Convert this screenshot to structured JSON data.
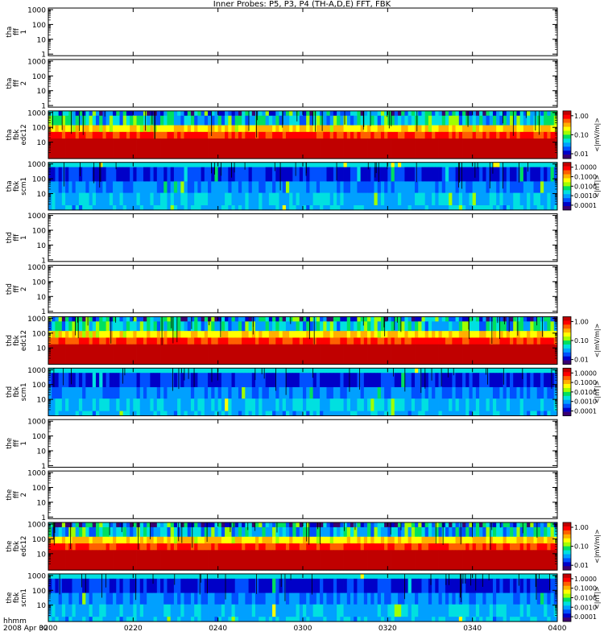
{
  "title": "Inner Probes: P5, P3, P4 (TH-A,D,E) FFT, FBK",
  "footer": {
    "time_format": "hhmm",
    "date": "2008 Apr 30"
  },
  "chart_data": {
    "type": "heatmap",
    "x_ticks": [
      "0200",
      "0220",
      "0240",
      "0300",
      "0320",
      "0340",
      "0400"
    ],
    "xlim_minutes": [
      0,
      120
    ],
    "panels": [
      {
        "ylabel": [
          "tha",
          "fff",
          "1"
        ],
        "kind": "empty",
        "y_ticks": [
          "1000",
          "100",
          "10",
          "1"
        ],
        "ylim": [
          1,
          1000
        ],
        "yscale": "log"
      },
      {
        "ylabel": [
          "tha",
          "fff",
          "2"
        ],
        "kind": "empty",
        "y_ticks": [
          "1000",
          "100",
          "10",
          "1"
        ],
        "ylim": [
          1,
          1000
        ],
        "yscale": "log"
      },
      {
        "ylabel": [
          "tha",
          "fbk",
          "edc12"
        ],
        "kind": "efield",
        "y_ticks": [
          "1000",
          "100",
          "10"
        ],
        "zlabel": "<|mV/m|>",
        "z_ticks": [
          "1.00",
          "0.10",
          "0.01"
        ]
      },
      {
        "ylabel": [
          "tha",
          "fbk",
          "scm1"
        ],
        "kind": "bfield",
        "y_ticks": [
          "1000",
          "100",
          "10"
        ],
        "zlabel": "<|nT|>",
        "z_ticks": [
          "1.0000",
          "0.1000",
          "0.0100",
          "0.0010",
          "0.0001"
        ]
      },
      {
        "ylabel": [
          "thd",
          "fff",
          "1"
        ],
        "kind": "empty",
        "y_ticks": [
          "1000",
          "100",
          "10",
          "1"
        ],
        "ylim": [
          1,
          1000
        ],
        "yscale": "log"
      },
      {
        "ylabel": [
          "thd",
          "fff",
          "2"
        ],
        "kind": "empty",
        "y_ticks": [
          "1000",
          "100",
          "10",
          "1"
        ],
        "ylim": [
          1,
          1000
        ],
        "yscale": "log"
      },
      {
        "ylabel": [
          "thd",
          "fbk",
          "edc12"
        ],
        "kind": "efield",
        "y_ticks": [
          "1000",
          "100",
          "10"
        ],
        "zlabel": "<|mV/m|>",
        "z_ticks": [
          "1.00",
          "0.10",
          "0.01"
        ]
      },
      {
        "ylabel": [
          "thd",
          "fbk",
          "scm1"
        ],
        "kind": "bfield",
        "y_ticks": [
          "1000",
          "100",
          "10"
        ],
        "zlabel": "<|nT|>",
        "z_ticks": [
          "1.0000",
          "0.1000",
          "0.0100",
          "0.0010",
          "0.0001"
        ]
      },
      {
        "ylabel": [
          "the",
          "fff",
          "1"
        ],
        "kind": "empty",
        "y_ticks": [
          "1000",
          "100",
          "10",
          "1"
        ],
        "ylim": [
          1,
          1000
        ],
        "yscale": "log"
      },
      {
        "ylabel": [
          "the",
          "fff",
          "2"
        ],
        "kind": "empty",
        "y_ticks": [
          "1000",
          "100",
          "10",
          "1"
        ],
        "ylim": [
          1,
          1000
        ],
        "yscale": "log"
      },
      {
        "ylabel": [
          "the",
          "fbk",
          "edc12"
        ],
        "kind": "efield",
        "y_ticks": [
          "1000",
          "100",
          "10"
        ],
        "zlabel": "<|mV/m|>",
        "z_ticks": [
          "1.00",
          "0.10",
          "0.01"
        ]
      },
      {
        "ylabel": [
          "the",
          "fbk",
          "scm1"
        ],
        "kind": "bfield",
        "y_ticks": [
          "1000",
          "100",
          "10"
        ],
        "zlabel": "<|nT|>",
        "z_ticks": [
          "1.0000",
          "0.1000",
          "0.0100",
          "0.0010",
          "0.0001"
        ]
      }
    ],
    "colormap": [
      "#3a0070",
      "#0000c8",
      "#0050ff",
      "#00a0ff",
      "#00e0e0",
      "#00e060",
      "#a0ff00",
      "#ffff00",
      "#ffb000",
      "#ff6000",
      "#ff0000",
      "#c00000"
    ]
  }
}
